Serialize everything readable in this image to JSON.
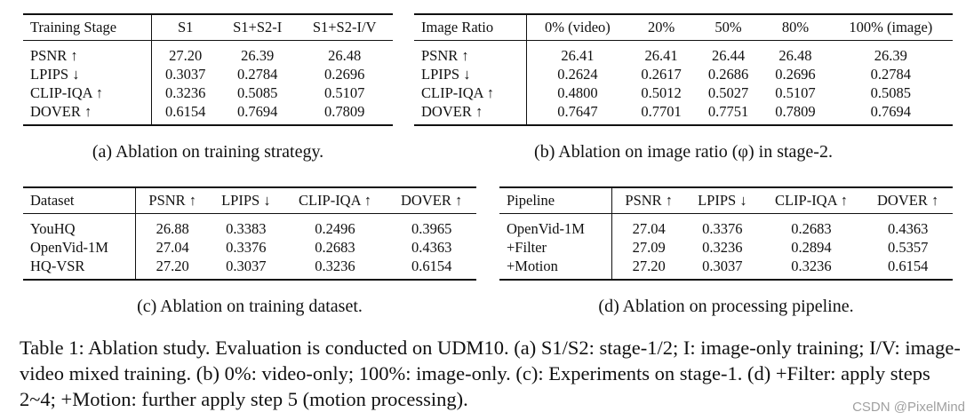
{
  "table_a": {
    "headers": [
      "Training Stage",
      "S1",
      "S1+S2-I",
      "S1+S2-I/V"
    ],
    "rows": [
      [
        "PSNR ↑",
        "27.20",
        "26.39",
        "26.48"
      ],
      [
        "LPIPS ↓",
        "0.3037",
        "0.2784",
        "0.2696"
      ],
      [
        "CLIP-IQA ↑",
        "0.3236",
        "0.5085",
        "0.5107"
      ],
      [
        "DOVER ↑",
        "0.6154",
        "0.7694",
        "0.7809"
      ]
    ],
    "bold": [
      [
        0,
        1
      ],
      [
        1,
        3
      ],
      [
        2,
        3
      ],
      [
        3,
        3
      ]
    ],
    "caption": "(a) Ablation on training strategy."
  },
  "table_b": {
    "headers": [
      "Image Ratio",
      "0% (video)",
      "20%",
      "50%",
      "80%",
      "100% (image)"
    ],
    "rows": [
      [
        "PSNR ↑",
        "26.41",
        "26.41",
        "26.44",
        "26.48",
        "26.39"
      ],
      [
        "LPIPS ↓",
        "0.2624",
        "0.2617",
        "0.2686",
        "0.2696",
        "0.2784"
      ],
      [
        "CLIP-IQA ↑",
        "0.4800",
        "0.5012",
        "0.5027",
        "0.5107",
        "0.5085"
      ],
      [
        "DOVER ↑",
        "0.7647",
        "0.7701",
        "0.7751",
        "0.7809",
        "0.7694"
      ]
    ],
    "bold": [
      [
        0,
        4
      ],
      [
        1,
        2
      ],
      [
        2,
        4
      ],
      [
        3,
        4
      ]
    ],
    "caption": "(b) Ablation on image ratio (φ) in stage-2."
  },
  "table_c": {
    "headers": [
      "Dataset",
      "PSNR ↑",
      "LPIPS ↓",
      "CLIP-IQA ↑",
      "DOVER ↑"
    ],
    "rows": [
      [
        "YouHQ",
        "26.88",
        "0.3383",
        "0.2496",
        "0.3965"
      ],
      [
        "OpenVid-1M",
        "27.04",
        "0.3376",
        "0.2683",
        "0.4363"
      ],
      [
        "HQ-VSR",
        "27.20",
        "0.3037",
        "0.3236",
        "0.6154"
      ]
    ],
    "bold": [
      [
        2,
        1
      ],
      [
        2,
        2
      ],
      [
        2,
        3
      ],
      [
        2,
        4
      ]
    ],
    "caption": "(c) Ablation on training dataset."
  },
  "table_d": {
    "headers": [
      "Pipeline",
      "PSNR ↑",
      "LPIPS ↓",
      "CLIP-IQA ↑",
      "DOVER ↑"
    ],
    "rows": [
      [
        "OpenVid-1M",
        "27.04",
        "0.3376",
        "0.2683",
        "0.4363"
      ],
      [
        "+Filter",
        "27.09",
        "0.3236",
        "0.2894",
        "0.5357"
      ],
      [
        "+Motion",
        "27.20",
        "0.3037",
        "0.3236",
        "0.6154"
      ]
    ],
    "bold": [
      [
        2,
        1
      ],
      [
        2,
        2
      ],
      [
        2,
        3
      ],
      [
        2,
        4
      ]
    ],
    "caption": "(d) Ablation on processing pipeline."
  },
  "main_caption": "Table 1: Ablation study. Evaluation is conducted on UDM10. (a) S1/S2: stage-1/2; I: image-only training; I/V: image-video mixed training. (b) 0%: video-only; 100%: image-only. (c): Experiments on stage-1. (d) +Filter: apply steps 2~4; +Motion: further apply step 5 (motion processing).",
  "watermark": "CSDN @PixelMind"
}
